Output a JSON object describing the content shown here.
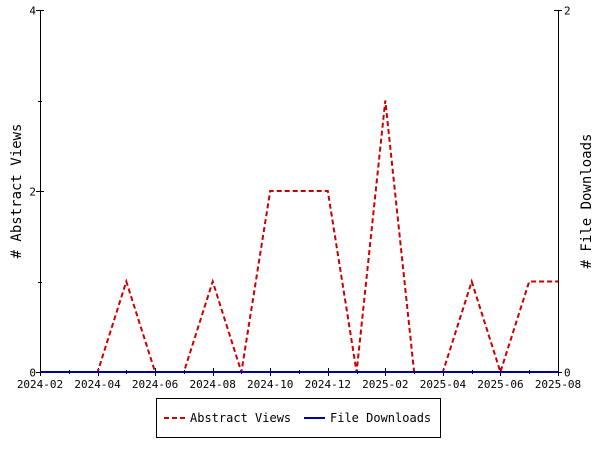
{
  "chart_data": {
    "type": "line",
    "x_label_left": "# Abstract Views",
    "y_label_right": "# File Downloads",
    "x_ticks": [
      "2024-02",
      "2024-04",
      "2024-06",
      "2024-08",
      "2024-10",
      "2024-12",
      "2025-02",
      "2025-04",
      "2025-06",
      "2025-08"
    ],
    "left_axis": {
      "ylim": [
        0,
        4
      ],
      "ticks": [
        "0",
        "2",
        "4"
      ]
    },
    "right_axis": {
      "ylim": [
        0,
        2
      ],
      "ticks": [
        "0",
        "2"
      ]
    },
    "months": [
      "2024-02",
      "2024-03",
      "2024-04",
      "2024-05",
      "2024-06",
      "2024-07",
      "2024-08",
      "2024-09",
      "2024-10",
      "2024-11",
      "2024-12",
      "2025-01",
      "2025-02",
      "2025-03",
      "2025-04",
      "2025-05",
      "2025-06",
      "2025-07",
      "2025-08"
    ],
    "series": [
      {
        "name": "Abstract Views",
        "axis": "left",
        "color": "#cc0000",
        "style": "dashed",
        "values": [
          0,
          0,
          0,
          1,
          0,
          0,
          1,
          0,
          2,
          2,
          2,
          0,
          3,
          0,
          0,
          1,
          0,
          1,
          1
        ]
      },
      {
        "name": "File Downloads",
        "axis": "right",
        "color": "#000099",
        "style": "solid",
        "values": [
          0,
          0,
          0,
          0,
          0,
          0,
          0,
          0,
          0,
          0,
          0,
          0,
          0,
          0,
          0,
          0,
          0,
          0,
          0
        ]
      }
    ],
    "legend_position": "bottom",
    "grid": false
  }
}
